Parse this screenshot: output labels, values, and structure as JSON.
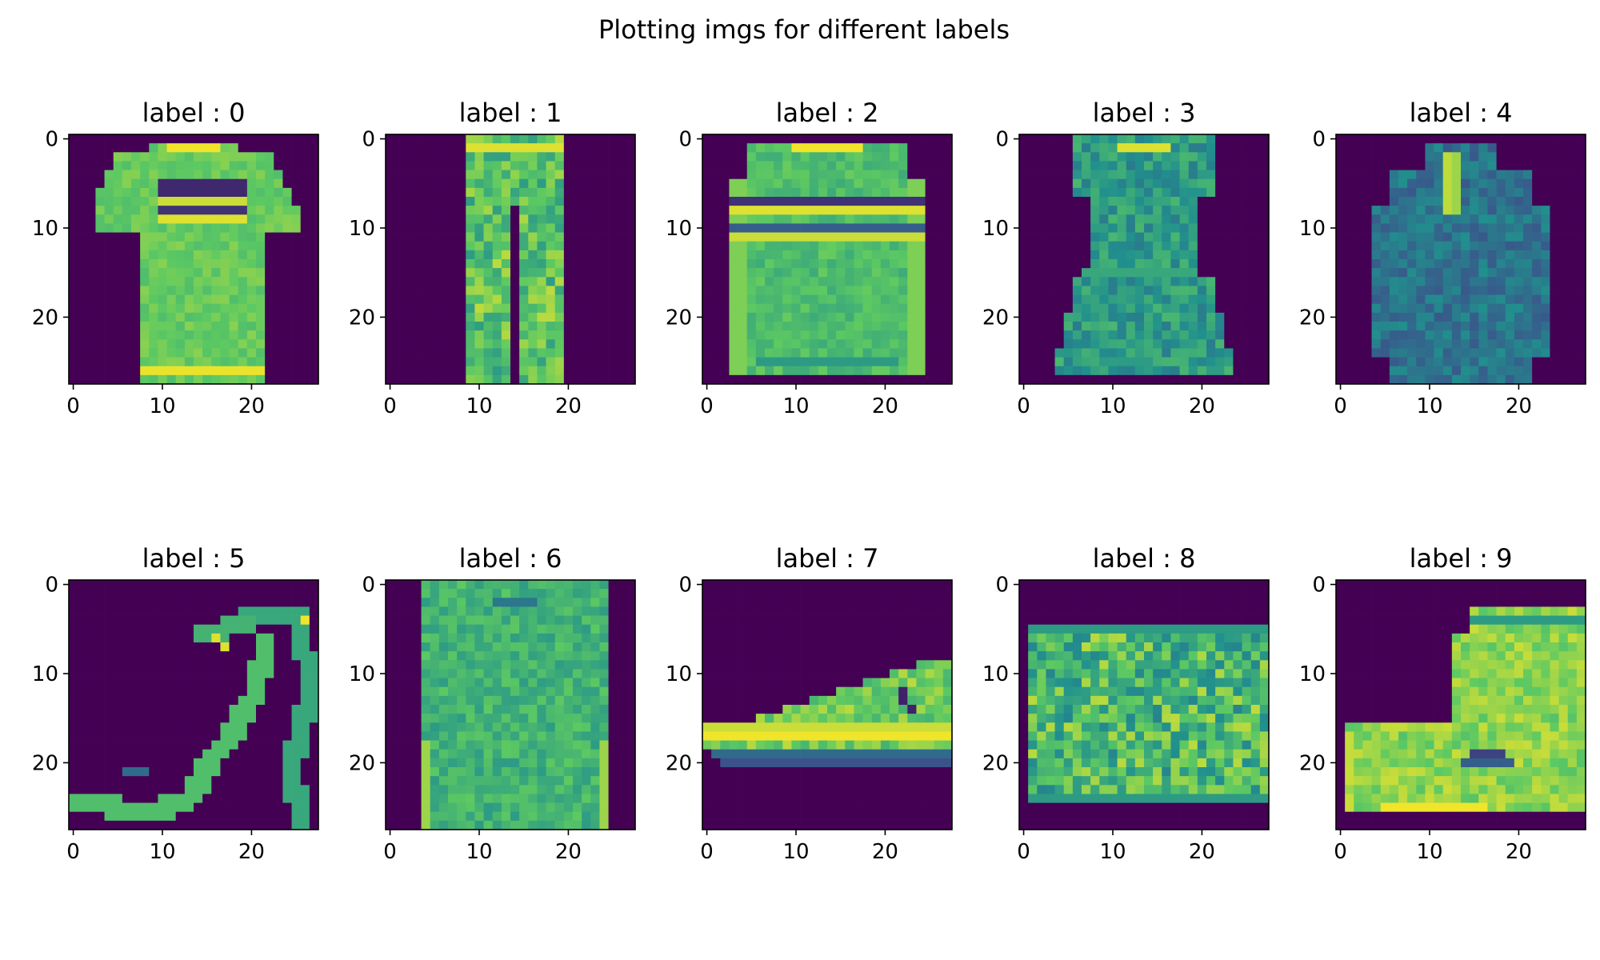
{
  "chart_data": {
    "type": "heatmap",
    "title": "Plotting imgs for different labels",
    "colormap": "viridis",
    "colormap_stops": [
      "#440154",
      "#3b528b",
      "#21908d",
      "#5dc962",
      "#fde725"
    ],
    "background_value": 0.0,
    "image_size": [
      28,
      28
    ],
    "xlim": [
      -0.5,
      27.5
    ],
    "ylim": [
      27.5,
      -0.5
    ],
    "xticks": [
      0,
      10,
      20
    ],
    "yticks": [
      0,
      10,
      20
    ],
    "layout": {
      "rows": 2,
      "cols": 5
    },
    "panels": [
      {
        "title": "label : 0",
        "label": 0,
        "item": "t-shirt"
      },
      {
        "title": "label : 1",
        "label": 1,
        "item": "trouser"
      },
      {
        "title": "label : 2",
        "label": 2,
        "item": "pullover"
      },
      {
        "title": "label : 3",
        "label": 3,
        "item": "dress"
      },
      {
        "title": "label : 4",
        "label": 4,
        "item": "coat"
      },
      {
        "title": "label : 5",
        "label": 5,
        "item": "sandal"
      },
      {
        "title": "label : 6",
        "label": 6,
        "item": "shirt"
      },
      {
        "title": "label : 7",
        "label": 7,
        "item": "sneaker"
      },
      {
        "title": "label : 8",
        "label": 8,
        "item": "bag"
      },
      {
        "title": "label : 9",
        "label": 9,
        "item": "ankle-boot"
      }
    ]
  }
}
